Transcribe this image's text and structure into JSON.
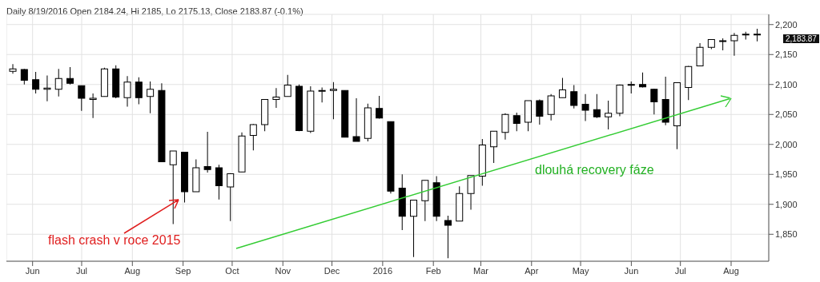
{
  "chart_data": {
    "type": "candlestick",
    "title": "Daily 8/19/2016 Open 2184.24, Hi 2185, Lo 2175.13, Close 2183.87 (-0.1%)",
    "x": [
      "2015-05-20",
      "2015-05-27",
      "2015-06-03",
      "2015-06-10",
      "2015-06-17",
      "2015-06-24",
      "2015-07-01",
      "2015-07-08",
      "2015-07-15",
      "2015-07-22",
      "2015-07-29",
      "2015-08-05",
      "2015-08-12",
      "2015-08-19",
      "2015-08-26",
      "2015-09-02",
      "2015-09-09",
      "2015-09-16",
      "2015-09-23",
      "2015-09-30",
      "2015-10-07",
      "2015-10-14",
      "2015-10-21",
      "2015-10-28",
      "2015-11-04",
      "2015-11-11",
      "2015-11-18",
      "2015-11-25",
      "2015-12-02",
      "2015-12-09",
      "2015-12-16",
      "2015-12-23",
      "2015-12-30",
      "2016-01-06",
      "2016-01-13",
      "2016-01-20",
      "2016-01-27",
      "2016-02-03",
      "2016-02-10",
      "2016-02-17",
      "2016-02-24",
      "2016-03-02",
      "2016-03-09",
      "2016-03-16",
      "2016-03-23",
      "2016-03-30",
      "2016-04-06",
      "2016-04-13",
      "2016-04-20",
      "2016-04-27",
      "2016-05-04",
      "2016-05-11",
      "2016-05-18",
      "2016-05-25",
      "2016-06-01",
      "2016-06-08",
      "2016-06-15",
      "2016-06-22",
      "2016-06-29",
      "2016-07-06",
      "2016-07-13",
      "2016-07-20",
      "2016-07-27",
      "2016-08-03",
      "2016-08-10",
      "2016-08-17"
    ],
    "ohlc": [
      [
        2122,
        2134,
        2118,
        2126
      ],
      [
        2125,
        2126,
        2100,
        2107
      ],
      [
        2108,
        2121,
        2085,
        2092
      ],
      [
        2092,
        2115,
        2072,
        2094
      ],
      [
        2092,
        2126,
        2080,
        2110
      ],
      [
        2110,
        2129,
        2100,
        2102
      ],
      [
        2098,
        2098,
        2056,
        2077
      ],
      [
        2075,
        2085,
        2044,
        2077
      ],
      [
        2080,
        2128,
        2080,
        2126
      ],
      [
        2126,
        2132,
        2077,
        2079
      ],
      [
        2078,
        2114,
        2063,
        2104
      ],
      [
        2104,
        2112,
        2067,
        2078
      ],
      [
        2080,
        2105,
        2052,
        2092
      ],
      [
        2090,
        2102,
        1971,
        1971
      ],
      [
        1966,
        1989,
        1867,
        1989
      ],
      [
        1987,
        1987,
        1903,
        1921
      ],
      [
        1921,
        1975,
        1921,
        1961
      ],
      [
        1963,
        2021,
        1953,
        1958
      ],
      [
        1961,
        1966,
        1908,
        1931
      ],
      [
        1929,
        1952,
        1872,
        1951
      ],
      [
        1954,
        2020,
        1954,
        2014
      ],
      [
        2015,
        2034,
        1990,
        2033
      ],
      [
        2033,
        2075,
        2022,
        2075
      ],
      [
        2075,
        2094,
        2061,
        2079
      ],
      [
        2080,
        2116,
        2080,
        2099
      ],
      [
        2097,
        2100,
        2022,
        2023
      ],
      [
        2022,
        2097,
        2019,
        2089
      ],
      [
        2089,
        2095,
        2070,
        2090
      ],
      [
        2090,
        2104,
        2042,
        2092
      ],
      [
        2090,
        2090,
        2012,
        2012
      ],
      [
        2013,
        2077,
        2005,
        2005
      ],
      [
        2010,
        2068,
        2005,
        2061
      ],
      [
        2060,
        2081,
        2043,
        2044
      ],
      [
        2038,
        2038,
        1918,
        1922
      ],
      [
        1927,
        1950,
        1857,
        1880
      ],
      [
        1880,
        1907,
        1812,
        1907
      ],
      [
        1906,
        1940,
        1872,
        1940
      ],
      [
        1936,
        1947,
        1872,
        1880
      ],
      [
        1873,
        1881,
        1810,
        1865
      ],
      [
        1872,
        1930,
        1872,
        1918
      ],
      [
        1918,
        1948,
        1891,
        1948
      ],
      [
        1947,
        2009,
        1931,
        1999
      ],
      [
        1996,
        2022,
        1969,
        2022
      ],
      [
        2020,
        2052,
        2008,
        2050
      ],
      [
        2048,
        2053,
        2022,
        2035
      ],
      [
        2037,
        2073,
        2022,
        2073
      ],
      [
        2073,
        2075,
        2033,
        2047
      ],
      [
        2050,
        2084,
        2040,
        2081
      ],
      [
        2078,
        2111,
        2078,
        2091
      ],
      [
        2088,
        2099,
        2060,
        2065
      ],
      [
        2067,
        2084,
        2039,
        2057
      ],
      [
        2058,
        2084,
        2044,
        2046
      ],
      [
        2046,
        2073,
        2025,
        2052
      ],
      [
        2052,
        2100,
        2047,
        2099
      ],
      [
        2100,
        2105,
        2085,
        2099
      ],
      [
        2100,
        2120,
        2095,
        2096
      ],
      [
        2092,
        2093,
        2050,
        2071
      ],
      [
        2075,
        2113,
        2032,
        2037
      ],
      [
        2031,
        2103,
        1992,
        2103
      ],
      [
        2095,
        2131,
        2074,
        2130
      ],
      [
        2131,
        2169,
        2131,
        2162
      ],
      [
        2162,
        2175,
        2159,
        2175
      ],
      [
        2173,
        2177,
        2157,
        2173
      ],
      [
        2173,
        2186,
        2148,
        2182
      ],
      [
        2183,
        2188,
        2175,
        2184
      ],
      [
        2183,
        2193,
        2172,
        2184
      ]
    ],
    "xlim": [
      "2015-05-16",
      "2016-08-24"
    ],
    "xticks": [
      {
        "value": "2015-06-01",
        "label": "Jun"
      },
      {
        "value": "2015-07-01",
        "label": "Jul"
      },
      {
        "value": "2015-08-01",
        "label": "Aug"
      },
      {
        "value": "2015-09-01",
        "label": "Sep"
      },
      {
        "value": "2015-10-01",
        "label": "Oct"
      },
      {
        "value": "2015-11-01",
        "label": "Nov"
      },
      {
        "value": "2015-12-01",
        "label": "Dec"
      },
      {
        "value": "2016-01-01",
        "label": "2016"
      },
      {
        "value": "2016-02-01",
        "label": "Feb"
      },
      {
        "value": "2016-03-01",
        "label": "Mar"
      },
      {
        "value": "2016-04-01",
        "label": "Apr"
      },
      {
        "value": "2016-05-01",
        "label": "May"
      },
      {
        "value": "2016-06-01",
        "label": "Jun"
      },
      {
        "value": "2016-07-01",
        "label": "Jul"
      },
      {
        "value": "2016-08-01",
        "label": "Aug"
      }
    ],
    "ylim": [
      1805,
      2217
    ],
    "yticks": [
      {
        "value": 1850,
        "label": "1,850"
      },
      {
        "value": 1900,
        "label": "1,900"
      },
      {
        "value": 1950,
        "label": "1,950"
      },
      {
        "value": 2000,
        "label": "2,000"
      },
      {
        "value": 2050,
        "label": "2,050"
      },
      {
        "value": 2100,
        "label": "2,100"
      },
      {
        "value": 2150,
        "label": "2,150"
      },
      {
        "value": 2200,
        "label": "2,200"
      }
    ],
    "grid": true,
    "annotations": [
      "flash crash v roce 2015",
      "dlouhá recovery fáze",
      "2,183.87"
    ]
  }
}
